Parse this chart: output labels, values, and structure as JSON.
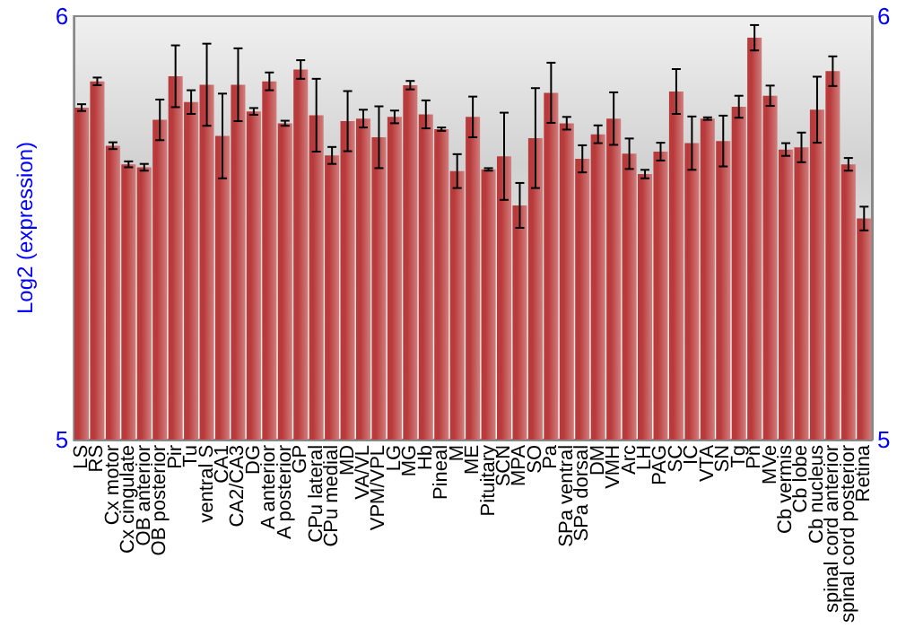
{
  "chart_data": {
    "type": "bar",
    "ylabel": "Log2 (expression)",
    "categories": [
      "LS",
      "RS",
      "Cx motor",
      "Cx cingulate",
      "OB anterior",
      "OB posterior",
      "Pir",
      "Tu",
      "ventral S",
      "CA1",
      "CA2/CA3",
      "DG",
      "A anterior",
      "A posterior",
      "GP",
      "CPu lateral",
      "CPu medial",
      "MD",
      "VA/VL",
      "VPM/VPL",
      "LG",
      "MG",
      "Hb",
      "Pineal",
      "M",
      "ME",
      "Pituitary",
      "SCN",
      "MPA",
      "SO",
      "Pa",
      "SPa ventral",
      "SPa dorsal",
      "DM",
      "VMH",
      "Arc",
      "LH",
      "PAG",
      "SC",
      "IC",
      "VTA",
      "SN",
      "Tg",
      "Pn",
      "MVe",
      "Cb vermis",
      "Cb lobe",
      "Cb nucleus",
      "spinal cord anterior",
      "spinal cord posterior",
      "Retina"
    ],
    "values": [
      5.784,
      5.846,
      5.694,
      5.65,
      5.643,
      5.755,
      5.858,
      5.797,
      5.838,
      5.717,
      5.838,
      5.775,
      5.846,
      5.747,
      5.874,
      5.766,
      5.671,
      5.752,
      5.758,
      5.714,
      5.762,
      5.837,
      5.768,
      5.733,
      5.634,
      5.762,
      5.638,
      5.669,
      5.553,
      5.712,
      5.819,
      5.747,
      5.663,
      5.721,
      5.758,
      5.675,
      5.627,
      5.68,
      5.822,
      5.7,
      5.758,
      5.705,
      5.786,
      5.949,
      5.812,
      5.685,
      5.69,
      5.779,
      5.87,
      5.65,
      5.522
    ],
    "errors": [
      0.008,
      0.009,
      0.008,
      0.007,
      0.008,
      0.048,
      0.073,
      0.028,
      0.097,
      0.1,
      0.086,
      0.008,
      0.021,
      0.006,
      0.022,
      0.086,
      0.02,
      0.071,
      0.021,
      0.073,
      0.015,
      0.01,
      0.033,
      0.004,
      0.04,
      0.048,
      0.003,
      0.103,
      0.053,
      0.118,
      0.071,
      0.015,
      0.032,
      0.021,
      0.062,
      0.036,
      0.01,
      0.021,
      0.053,
      0.063,
      0.003,
      0.06,
      0.026,
      0.03,
      0.024,
      0.015,
      0.035,
      0.078,
      0.035,
      0.015,
      0.028
    ],
    "color": "#b93a3a",
    "ylim": [
      5,
      6
    ],
    "yticks": [
      5,
      6
    ],
    "y2lim": [
      5,
      6
    ],
    "y2ticks": [
      5,
      6
    ],
    "grid": false
  }
}
